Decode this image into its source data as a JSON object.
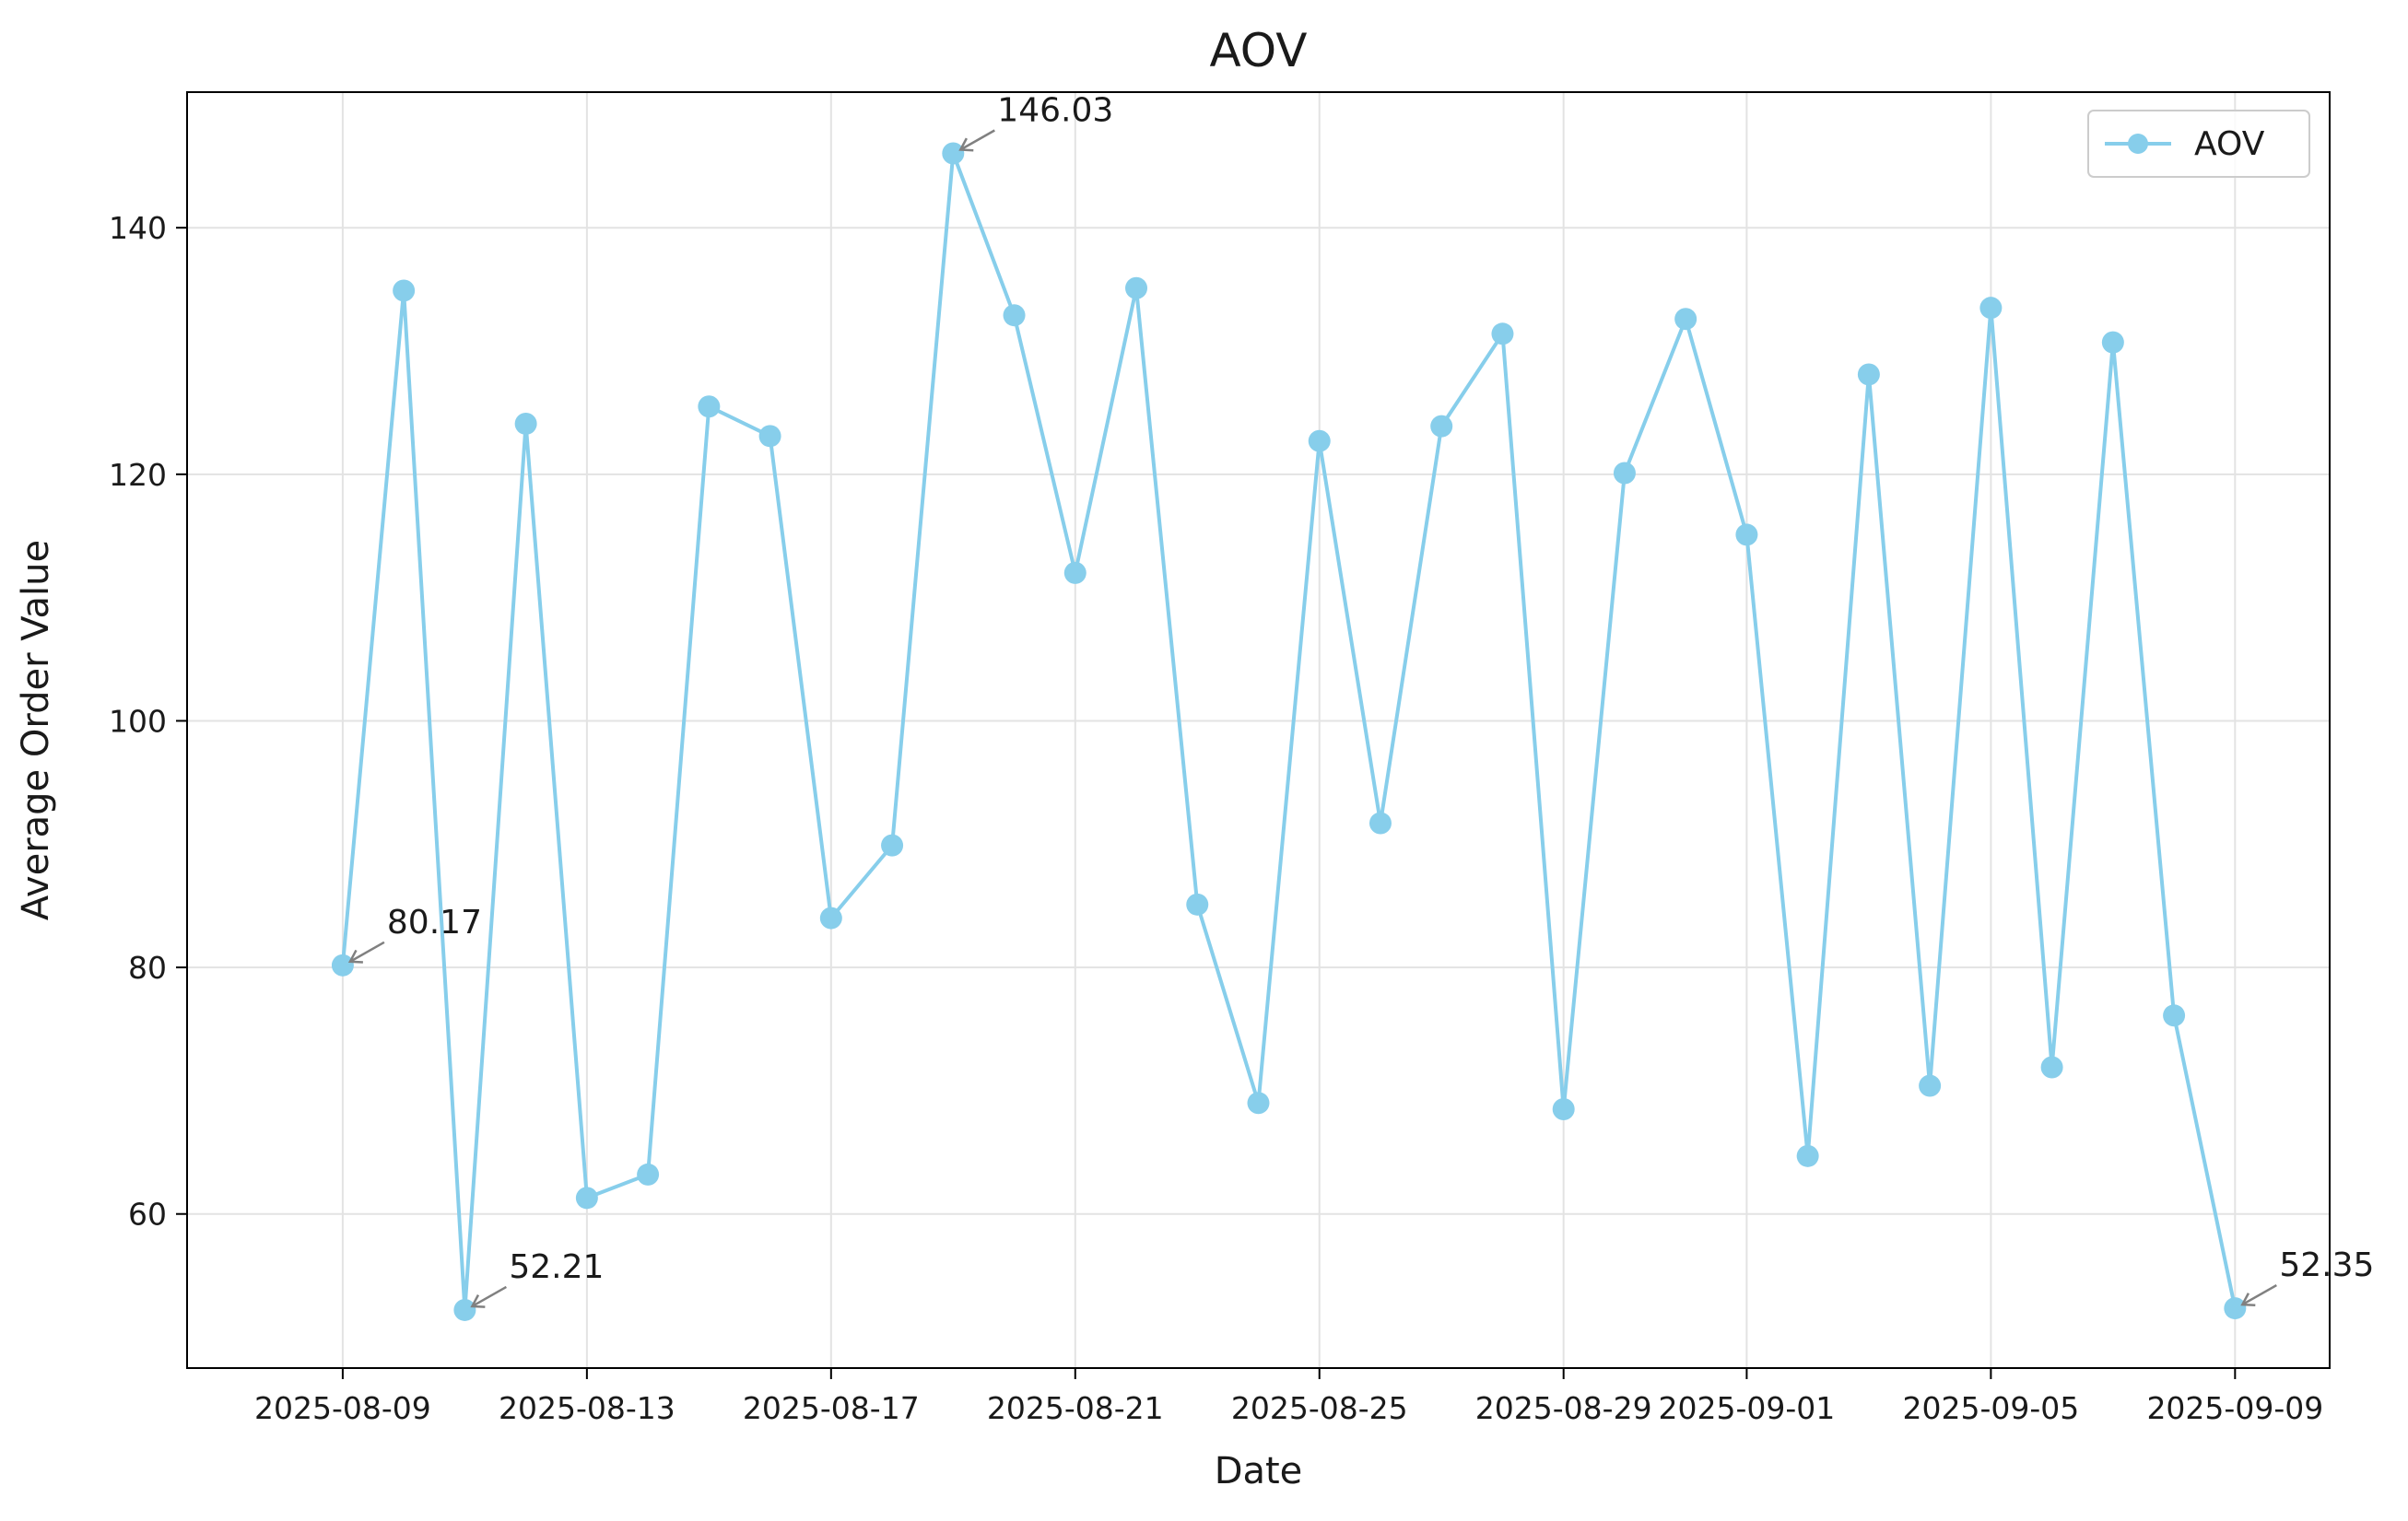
{
  "chart_data": {
    "type": "line",
    "title": "AOV",
    "xlabel": "Date",
    "ylabel": "Average Order Value",
    "x_start": "2025-08-09",
    "x_ticks": [
      "2025-08-09",
      "2025-08-13",
      "2025-08-17",
      "2025-08-21",
      "2025-08-25",
      "2025-08-29",
      "2025-09-01",
      "2025-09-05",
      "2025-09-09"
    ],
    "y_ticks": [
      60,
      80,
      100,
      120,
      140
    ],
    "xlim": [
      "2025-08-07.45",
      "2025-09-10.55"
    ],
    "ylim": [
      47.5,
      151.0
    ],
    "grid": true,
    "legend_position": "top-right",
    "colors": {
      "series": "#87CEEB",
      "annotation_arrow": "#808080",
      "grid": "#e3e3e3"
    },
    "series": [
      {
        "name": "AOV",
        "x": [
          "2025-08-09",
          "2025-08-10",
          "2025-08-11",
          "2025-08-12",
          "2025-08-13",
          "2025-08-14",
          "2025-08-15",
          "2025-08-16",
          "2025-08-17",
          "2025-08-18",
          "2025-08-19",
          "2025-08-20",
          "2025-08-21",
          "2025-08-22",
          "2025-08-23",
          "2025-08-24",
          "2025-08-25",
          "2025-08-26",
          "2025-08-27",
          "2025-08-28",
          "2025-08-29",
          "2025-08-30",
          "2025-08-31",
          "2025-09-01",
          "2025-09-02",
          "2025-09-03",
          "2025-09-04",
          "2025-09-05",
          "2025-09-06",
          "2025-09-07",
          "2025-09-08",
          "2025-09-09"
        ],
        "values": [
          80.17,
          134.9,
          52.21,
          124.1,
          61.3,
          63.2,
          125.5,
          123.1,
          84.0,
          89.9,
          146.03,
          132.9,
          112.0,
          135.1,
          85.1,
          69.0,
          122.7,
          91.7,
          123.9,
          131.4,
          68.5,
          120.1,
          132.6,
          115.1,
          64.7,
          128.1,
          70.4,
          133.5,
          71.9,
          130.7,
          76.1,
          52.35
        ]
      }
    ],
    "annotations": [
      {
        "x": "2025-08-09",
        "value": 80.17,
        "label": "80.17"
      },
      {
        "x": "2025-08-11",
        "value": 52.21,
        "label": "52.21"
      },
      {
        "x": "2025-08-19",
        "value": 146.03,
        "label": "146.03"
      },
      {
        "x": "2025-09-09",
        "value": 52.35,
        "label": "52.35"
      }
    ]
  }
}
